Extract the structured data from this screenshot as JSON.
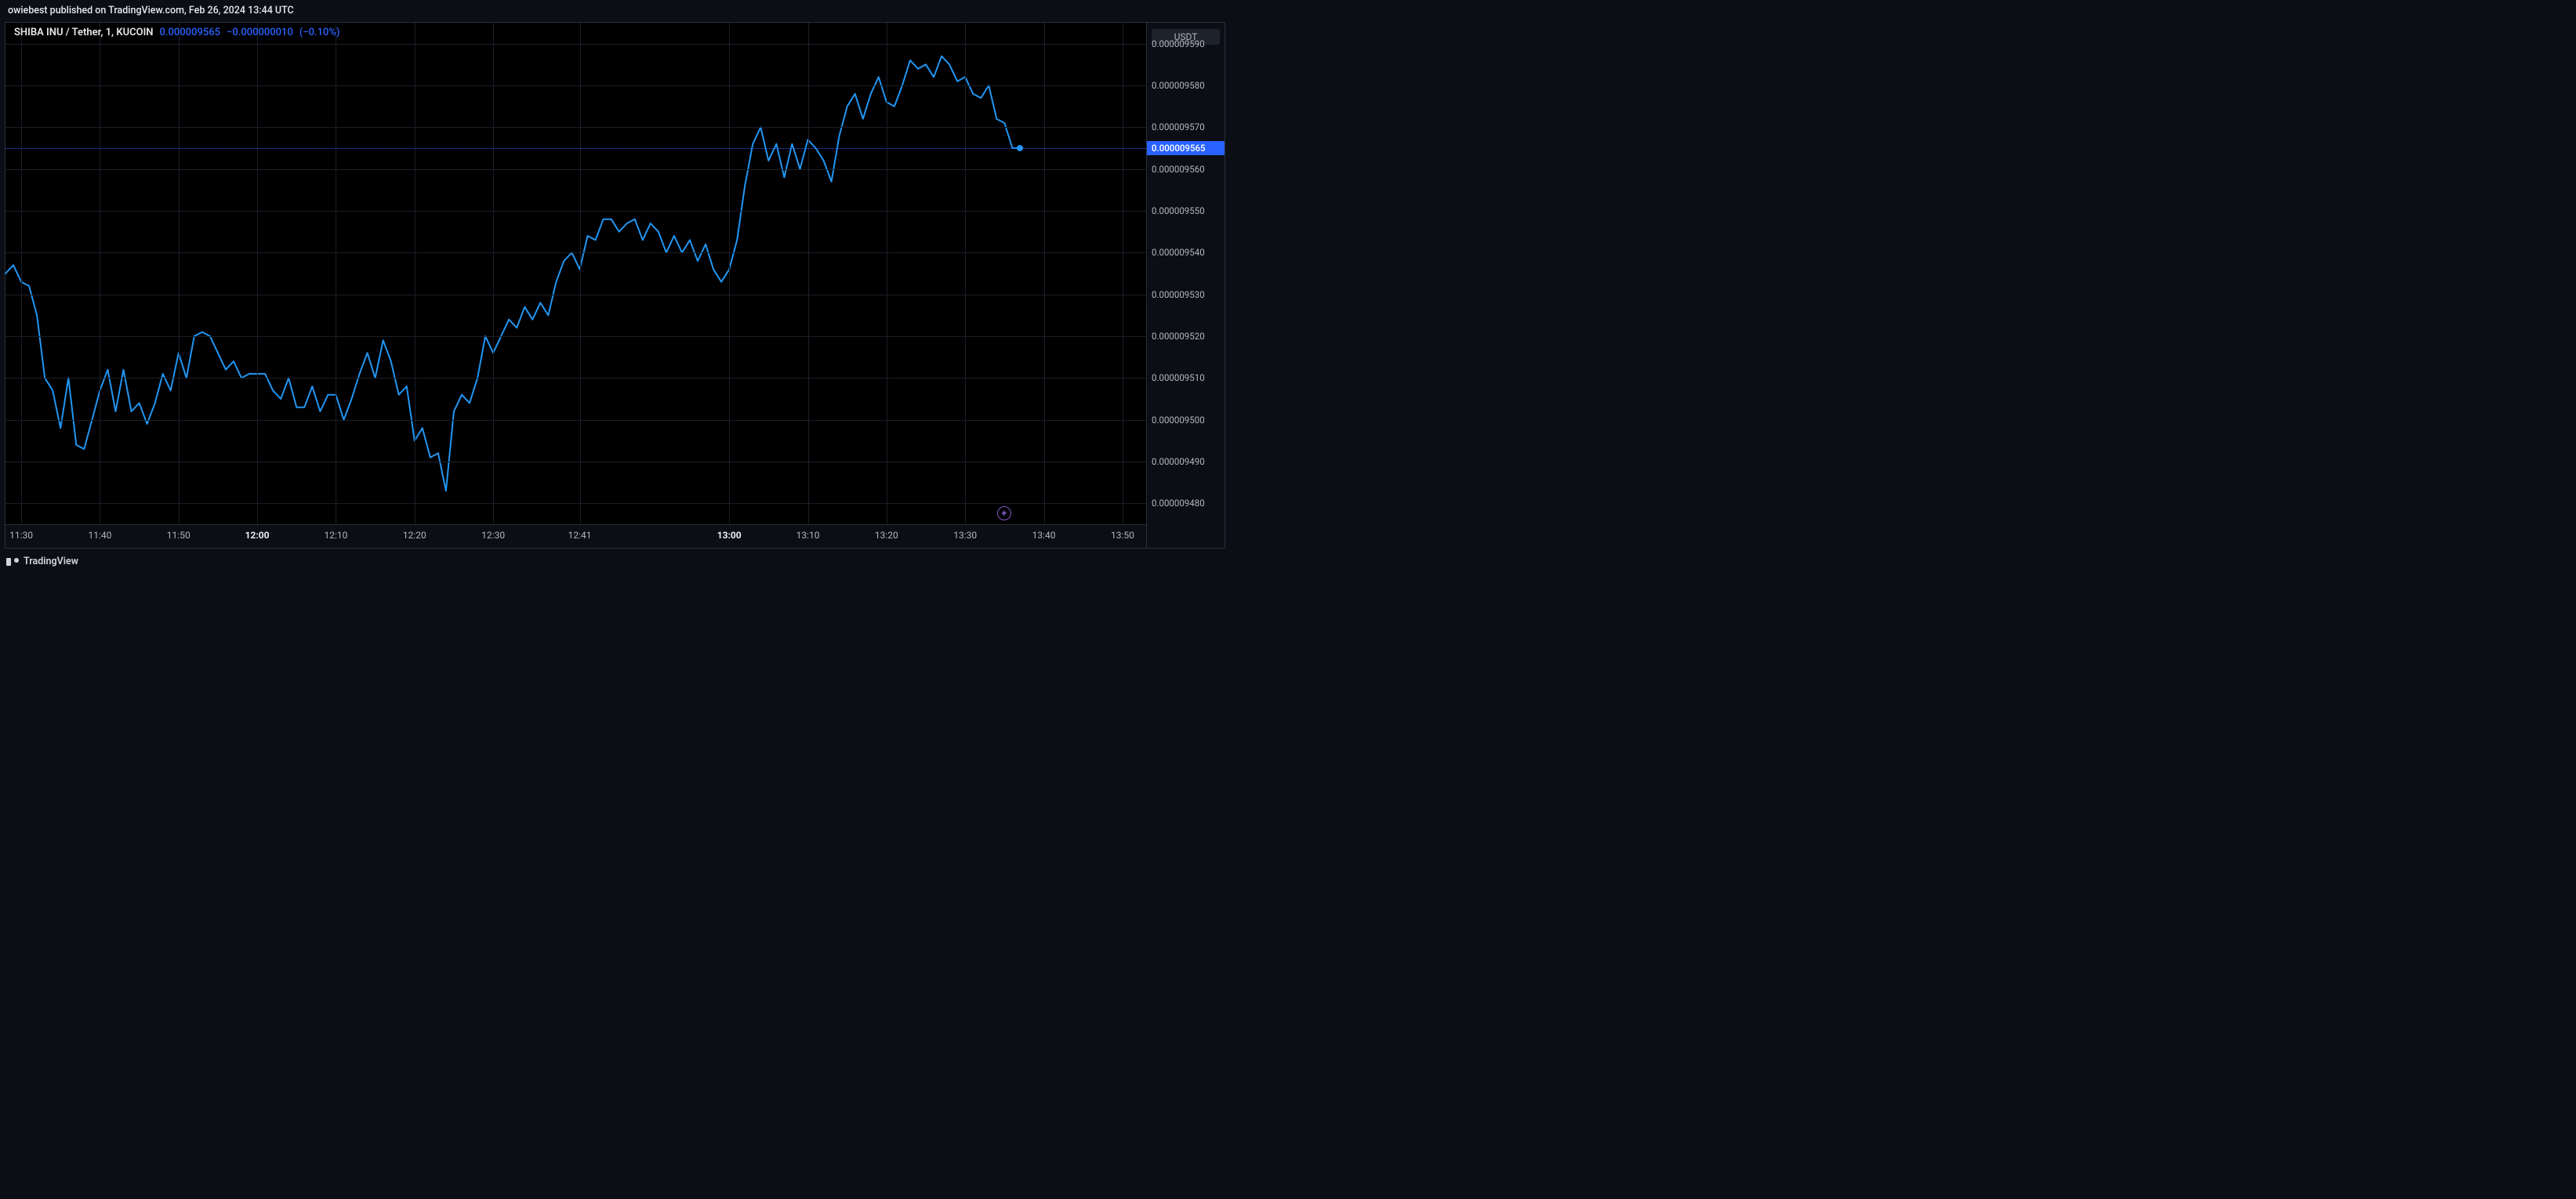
{
  "header": {
    "publish_text": "owiebest published on TradingView.com, Feb 26, 2024 13:44 UTC"
  },
  "legend": {
    "symbol": "SHIBA INU / Tether, 1, KUCOIN",
    "last_value": "0.000009565",
    "change_abs": "−0.000000010",
    "change_pct": "(−0.10%)",
    "value_color": "#2962ff"
  },
  "axis": {
    "unit_badge": "USDT",
    "current_price": "0.000009565",
    "current_price_bg": "#2962ff",
    "current_price_fg": "#ffffff",
    "priceline_color": "#2962ff"
  },
  "chart": {
    "type": "line",
    "line_color": "#2196f3",
    "line_width": 2,
    "background_color": "#000000",
    "grid_color": "#1b1f27",
    "axis_text_color": "#b2b5be",
    "endpoint_fill": "#2196f3",
    "y_min": 9.475e-06,
    "y_max": 9.595e-06,
    "y_ticks": [
      {
        "v": 9.48e-06,
        "label": "0.000009480"
      },
      {
        "v": 9.49e-06,
        "label": "0.000009490"
      },
      {
        "v": 9.5e-06,
        "label": "0.000009500"
      },
      {
        "v": 9.51e-06,
        "label": "0.000009510"
      },
      {
        "v": 9.52e-06,
        "label": "0.000009520"
      },
      {
        "v": 9.53e-06,
        "label": "0.000009530"
      },
      {
        "v": 9.54e-06,
        "label": "0.000009540"
      },
      {
        "v": 9.55e-06,
        "label": "0.000009550"
      },
      {
        "v": 9.56e-06,
        "label": "0.000009560"
      },
      {
        "v": 9.57e-06,
        "label": "0.000009570"
      },
      {
        "v": 9.58e-06,
        "label": "0.000009580"
      },
      {
        "v": 9.59e-06,
        "label": "0.000009590"
      }
    ],
    "x_min": 0,
    "x_max": 145,
    "x_ticks": [
      {
        "t": 2,
        "label": "11:30",
        "bold": false
      },
      {
        "t": 12,
        "label": "11:40",
        "bold": false
      },
      {
        "t": 22,
        "label": "11:50",
        "bold": false
      },
      {
        "t": 32,
        "label": "12:00",
        "bold": true
      },
      {
        "t": 42,
        "label": "12:10",
        "bold": false
      },
      {
        "t": 52,
        "label": "12:20",
        "bold": false
      },
      {
        "t": 62,
        "label": "12:30",
        "bold": false
      },
      {
        "t": 73,
        "label": "12:41",
        "bold": false
      },
      {
        "t": 92,
        "label": "13:00",
        "bold": true
      },
      {
        "t": 102,
        "label": "13:10",
        "bold": false
      },
      {
        "t": 112,
        "label": "13:20",
        "bold": false
      },
      {
        "t": 122,
        "label": "13:30",
        "bold": false
      },
      {
        "t": 132,
        "label": "13:40",
        "bold": false
      },
      {
        "t": 142,
        "label": "13:50",
        "bold": false
      }
    ],
    "snap_icon_t": 127,
    "series": [
      [
        0,
        9.535e-06
      ],
      [
        1,
        9.537e-06
      ],
      [
        2,
        9.533e-06
      ],
      [
        3,
        9.532e-06
      ],
      [
        4,
        9.525e-06
      ],
      [
        5,
        9.51e-06
      ],
      [
        6,
        9.507e-06
      ],
      [
        7,
        9.498e-06
      ],
      [
        8,
        9.51e-06
      ],
      [
        9,
        9.494e-06
      ],
      [
        10,
        9.493e-06
      ],
      [
        11,
        9.5e-06
      ],
      [
        12,
        9.507e-06
      ],
      [
        13,
        9.512e-06
      ],
      [
        14,
        9.502e-06
      ],
      [
        15,
        9.512e-06
      ],
      [
        16,
        9.502e-06
      ],
      [
        17,
        9.504e-06
      ],
      [
        18,
        9.499e-06
      ],
      [
        19,
        9.504e-06
      ],
      [
        20,
        9.511e-06
      ],
      [
        21,
        9.507e-06
      ],
      [
        22,
        9.516e-06
      ],
      [
        23,
        9.51e-06
      ],
      [
        24,
        9.52e-06
      ],
      [
        25,
        9.521e-06
      ],
      [
        26,
        9.52e-06
      ],
      [
        27,
        9.516e-06
      ],
      [
        28,
        9.512e-06
      ],
      [
        29,
        9.514e-06
      ],
      [
        30,
        9.51e-06
      ],
      [
        31,
        9.511e-06
      ],
      [
        32,
        9.511e-06
      ],
      [
        33,
        9.511e-06
      ],
      [
        34,
        9.507e-06
      ],
      [
        35,
        9.505e-06
      ],
      [
        36,
        9.51e-06
      ],
      [
        37,
        9.503e-06
      ],
      [
        38,
        9.503e-06
      ],
      [
        39,
        9.508e-06
      ],
      [
        40,
        9.502e-06
      ],
      [
        41,
        9.506e-06
      ],
      [
        42,
        9.506e-06
      ],
      [
        43,
        9.5e-06
      ],
      [
        44,
        9.505e-06
      ],
      [
        45,
        9.511e-06
      ],
      [
        46,
        9.516e-06
      ],
      [
        47,
        9.51e-06
      ],
      [
        48,
        9.519e-06
      ],
      [
        49,
        9.514e-06
      ],
      [
        50,
        9.506e-06
      ],
      [
        51,
        9.508e-06
      ],
      [
        52,
        9.495e-06
      ],
      [
        53,
        9.498e-06
      ],
      [
        54,
        9.491e-06
      ],
      [
        55,
        9.492e-06
      ],
      [
        56,
        9.483e-06
      ],
      [
        57,
        9.502e-06
      ],
      [
        58,
        9.506e-06
      ],
      [
        59,
        9.504e-06
      ],
      [
        60,
        9.51e-06
      ],
      [
        61,
        9.52e-06
      ],
      [
        62,
        9.516e-06
      ],
      [
        63,
        9.52e-06
      ],
      [
        64,
        9.524e-06
      ],
      [
        65,
        9.522e-06
      ],
      [
        66,
        9.527e-06
      ],
      [
        67,
        9.524e-06
      ],
      [
        68,
        9.528e-06
      ],
      [
        69,
        9.525e-06
      ],
      [
        70,
        9.533e-06
      ],
      [
        71,
        9.538e-06
      ],
      [
        72,
        9.54e-06
      ],
      [
        73,
        9.536e-06
      ],
      [
        74,
        9.544e-06
      ],
      [
        75,
        9.543e-06
      ],
      [
        76,
        9.548e-06
      ],
      [
        77,
        9.548e-06
      ],
      [
        78,
        9.545e-06
      ],
      [
        79,
        9.547e-06
      ],
      [
        80,
        9.548e-06
      ],
      [
        81,
        9.543e-06
      ],
      [
        82,
        9.547e-06
      ],
      [
        83,
        9.545e-06
      ],
      [
        84,
        9.54e-06
      ],
      [
        85,
        9.544e-06
      ],
      [
        86,
        9.54e-06
      ],
      [
        87,
        9.543e-06
      ],
      [
        88,
        9.538e-06
      ],
      [
        89,
        9.542e-06
      ],
      [
        90,
        9.536e-06
      ],
      [
        91,
        9.533e-06
      ],
      [
        92,
        9.536e-06
      ],
      [
        93,
        9.543e-06
      ],
      [
        94,
        9.556e-06
      ],
      [
        95,
        9.566e-06
      ],
      [
        96,
        9.57e-06
      ],
      [
        97,
        9.562e-06
      ],
      [
        98,
        9.566e-06
      ],
      [
        99,
        9.558e-06
      ],
      [
        100,
        9.566e-06
      ],
      [
        101,
        9.56e-06
      ],
      [
        102,
        9.567e-06
      ],
      [
        103,
        9.565e-06
      ],
      [
        104,
        9.562e-06
      ],
      [
        105,
        9.557e-06
      ],
      [
        106,
        9.568e-06
      ],
      [
        107,
        9.575e-06
      ],
      [
        108,
        9.578e-06
      ],
      [
        109,
        9.572e-06
      ],
      [
        110,
        9.578e-06
      ],
      [
        111,
        9.582e-06
      ],
      [
        112,
        9.576e-06
      ],
      [
        113,
        9.575e-06
      ],
      [
        114,
        9.58e-06
      ],
      [
        115,
        9.586e-06
      ],
      [
        116,
        9.584e-06
      ],
      [
        117,
        9.585e-06
      ],
      [
        118,
        9.582e-06
      ],
      [
        119,
        9.587e-06
      ],
      [
        120,
        9.585e-06
      ],
      [
        121,
        9.581e-06
      ],
      [
        122,
        9.582e-06
      ],
      [
        123,
        9.578e-06
      ],
      [
        124,
        9.577e-06
      ],
      [
        125,
        9.58e-06
      ],
      [
        126,
        9.572e-06
      ],
      [
        127,
        9.571e-06
      ],
      [
        128,
        9.565e-06
      ],
      [
        129,
        9.565e-06
      ]
    ]
  },
  "footer": {
    "brand": "TradingView"
  }
}
